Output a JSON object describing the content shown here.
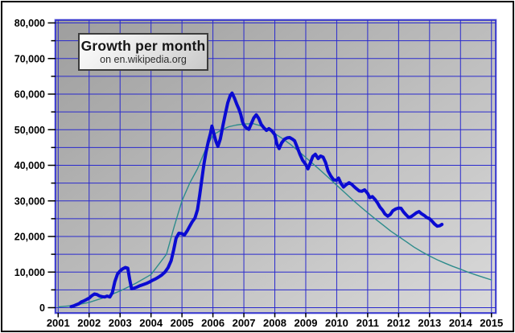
{
  "title_box": {
    "title": "Growth per month",
    "subtitle": "on en.wikipedia.org"
  },
  "colors": {
    "grid": "#2a2ace",
    "plot_border": "#2a2ace",
    "plot_border_halo": "#a0a0e6",
    "plot_bg_from": "#9e9e9e",
    "plot_bg_to": "#dadada",
    "axis": "#000000",
    "actual_line": "#0b0bd2",
    "fit_line": "#2e8c8c",
    "tick_label": "#000000"
  },
  "chart_data": {
    "type": "line",
    "title": "Growth per month",
    "subtitle": "on en.wikipedia.org",
    "xlabel": "",
    "ylabel": "",
    "xlim": [
      2001,
      2015.15
    ],
    "ylim": [
      0,
      80000
    ],
    "grid": true,
    "legend_position": "none",
    "x_ticks": [
      2001,
      2002,
      2003,
      2004,
      2005,
      2006,
      2007,
      2008,
      2009,
      2010,
      2011,
      2012,
      2013,
      2014,
      2015
    ],
    "x_tick_labels": [
      "2001",
      "2002",
      "2003",
      "2004",
      "2005",
      "2006",
      "2007",
      "2008",
      "2009",
      "2010",
      "2011",
      "2012",
      "2013",
      "2014",
      "2015"
    ],
    "y_major_step": 10000,
    "y_minor_step": 5000,
    "y_major_labels": [
      "0",
      "10,000",
      "20,000",
      "30,000",
      "40,000",
      "50,000",
      "60,000",
      "70,000",
      "80,000"
    ],
    "series": [
      {
        "name": "new-articles-per-month-actual",
        "style": "thick",
        "points": [
          [
            2001.42,
            300
          ],
          [
            2001.5,
            500
          ],
          [
            2001.58,
            800
          ],
          [
            2001.67,
            1100
          ],
          [
            2001.75,
            1600
          ],
          [
            2001.83,
            1900
          ],
          [
            2001.92,
            2300
          ],
          [
            2002.0,
            2700
          ],
          [
            2002.08,
            3300
          ],
          [
            2002.17,
            3850
          ],
          [
            2002.25,
            3700
          ],
          [
            2002.33,
            3300
          ],
          [
            2002.42,
            3100
          ],
          [
            2002.5,
            3000
          ],
          [
            2002.58,
            3250
          ],
          [
            2002.67,
            3000
          ],
          [
            2002.75,
            4200
          ],
          [
            2002.83,
            7300
          ],
          [
            2002.92,
            9500
          ],
          [
            2003.0,
            10300
          ],
          [
            2003.08,
            10900
          ],
          [
            2003.17,
            11300
          ],
          [
            2003.25,
            11100
          ],
          [
            2003.31,
            8000
          ],
          [
            2003.37,
            5300
          ],
          [
            2003.46,
            5500
          ],
          [
            2003.55,
            5800
          ],
          [
            2003.65,
            6200
          ],
          [
            2003.75,
            6500
          ],
          [
            2003.85,
            6800
          ],
          [
            2003.95,
            7200
          ],
          [
            2004.05,
            7700
          ],
          [
            2004.15,
            8100
          ],
          [
            2004.25,
            8600
          ],
          [
            2004.35,
            9200
          ],
          [
            2004.45,
            10000
          ],
          [
            2004.55,
            11200
          ],
          [
            2004.65,
            13200
          ],
          [
            2004.73,
            16200
          ],
          [
            2004.81,
            19500
          ],
          [
            2004.9,
            20900
          ],
          [
            2005.0,
            20800
          ],
          [
            2005.08,
            20400
          ],
          [
            2005.17,
            21600
          ],
          [
            2005.25,
            22900
          ],
          [
            2005.33,
            24100
          ],
          [
            2005.42,
            25200
          ],
          [
            2005.5,
            27500
          ],
          [
            2005.57,
            31500
          ],
          [
            2005.64,
            36000
          ],
          [
            2005.71,
            40300
          ],
          [
            2005.78,
            43800
          ],
          [
            2005.85,
            46600
          ],
          [
            2005.92,
            48900
          ],
          [
            2005.97,
            51000
          ],
          [
            2006.04,
            48600
          ],
          [
            2006.1,
            46700
          ],
          [
            2006.16,
            45300
          ],
          [
            2006.24,
            47400
          ],
          [
            2006.32,
            51000
          ],
          [
            2006.4,
            54400
          ],
          [
            2006.48,
            57600
          ],
          [
            2006.56,
            59600
          ],
          [
            2006.62,
            60300
          ],
          [
            2006.7,
            58800
          ],
          [
            2006.77,
            57200
          ],
          [
            2006.84,
            55800
          ],
          [
            2006.9,
            54300
          ],
          [
            2006.95,
            52400
          ],
          [
            2007.0,
            51300
          ],
          [
            2007.08,
            50500
          ],
          [
            2007.16,
            50100
          ],
          [
            2007.24,
            51700
          ],
          [
            2007.32,
            53300
          ],
          [
            2007.4,
            54200
          ],
          [
            2007.48,
            53200
          ],
          [
            2007.56,
            51500
          ],
          [
            2007.64,
            50600
          ],
          [
            2007.73,
            49800
          ],
          [
            2007.81,
            50300
          ],
          [
            2007.9,
            49700
          ],
          [
            2008.0,
            48600
          ],
          [
            2008.07,
            45900
          ],
          [
            2008.14,
            44700
          ],
          [
            2008.22,
            46300
          ],
          [
            2008.31,
            47300
          ],
          [
            2008.4,
            47700
          ],
          [
            2008.48,
            47800
          ],
          [
            2008.56,
            47400
          ],
          [
            2008.64,
            46900
          ],
          [
            2008.73,
            44900
          ],
          [
            2008.81,
            43100
          ],
          [
            2008.9,
            41400
          ],
          [
            2009.0,
            40200
          ],
          [
            2009.07,
            39000
          ],
          [
            2009.15,
            40700
          ],
          [
            2009.23,
            42500
          ],
          [
            2009.31,
            43100
          ],
          [
            2009.4,
            41900
          ],
          [
            2009.48,
            42600
          ],
          [
            2009.56,
            42300
          ],
          [
            2009.64,
            40800
          ],
          [
            2009.72,
            38400
          ],
          [
            2009.81,
            37000
          ],
          [
            2009.9,
            35900
          ],
          [
            2010.0,
            35800
          ],
          [
            2010.06,
            36400
          ],
          [
            2010.14,
            34900
          ],
          [
            2010.22,
            33900
          ],
          [
            2010.31,
            34600
          ],
          [
            2010.4,
            35100
          ],
          [
            2010.48,
            34700
          ],
          [
            2010.56,
            34000
          ],
          [
            2010.64,
            33400
          ],
          [
            2010.73,
            32800
          ],
          [
            2010.81,
            32700
          ],
          [
            2010.9,
            33100
          ],
          [
            2011.0,
            32100
          ],
          [
            2011.07,
            30900
          ],
          [
            2011.15,
            31200
          ],
          [
            2011.24,
            30400
          ],
          [
            2011.32,
            29400
          ],
          [
            2011.4,
            28200
          ],
          [
            2011.48,
            27400
          ],
          [
            2011.56,
            26300
          ],
          [
            2011.65,
            25700
          ],
          [
            2011.73,
            26200
          ],
          [
            2011.81,
            27200
          ],
          [
            2011.9,
            27700
          ],
          [
            2012.0,
            28000
          ],
          [
            2012.08,
            27900
          ],
          [
            2012.16,
            26900
          ],
          [
            2012.24,
            26100
          ],
          [
            2012.33,
            25300
          ],
          [
            2012.41,
            25600
          ],
          [
            2012.49,
            26100
          ],
          [
            2012.58,
            26700
          ],
          [
            2012.66,
            27000
          ],
          [
            2012.74,
            26400
          ],
          [
            2012.83,
            25900
          ],
          [
            2012.91,
            25300
          ],
          [
            2013.0,
            25000
          ],
          [
            2013.08,
            24300
          ],
          [
            2013.16,
            23500
          ],
          [
            2013.25,
            22900
          ],
          [
            2013.33,
            23000
          ],
          [
            2013.4,
            23400
          ]
        ]
      },
      {
        "name": "growth-model-fit",
        "style": "thin",
        "points": [
          [
            2001.0,
            200
          ],
          [
            2001.5,
            600
          ],
          [
            2002.0,
            1500
          ],
          [
            2002.5,
            2900
          ],
          [
            2003.0,
            4700
          ],
          [
            2003.5,
            6800
          ],
          [
            2004.0,
            9300
          ],
          [
            2004.5,
            15000
          ],
          [
            2004.75,
            22800
          ],
          [
            2005.0,
            30000
          ],
          [
            2005.25,
            35000
          ],
          [
            2005.5,
            39000
          ],
          [
            2005.75,
            44200
          ],
          [
            2006.0,
            48500
          ],
          [
            2006.25,
            49800
          ],
          [
            2006.5,
            50800
          ],
          [
            2006.75,
            51300
          ],
          [
            2007.0,
            51600
          ],
          [
            2007.3,
            51700
          ],
          [
            2007.5,
            51200
          ],
          [
            2007.75,
            50200
          ],
          [
            2008.0,
            48900
          ],
          [
            2008.25,
            47500
          ],
          [
            2008.5,
            45900
          ],
          [
            2008.75,
            44100
          ],
          [
            2009.0,
            42200
          ],
          [
            2009.25,
            40300
          ],
          [
            2009.5,
            38400
          ],
          [
            2009.75,
            36400
          ],
          [
            2010.0,
            34400
          ],
          [
            2010.25,
            32400
          ],
          [
            2010.5,
            30400
          ],
          [
            2010.75,
            28500
          ],
          [
            2011.0,
            26700
          ],
          [
            2011.25,
            24900
          ],
          [
            2011.5,
            23200
          ],
          [
            2011.75,
            21500
          ],
          [
            2012.0,
            20000
          ],
          [
            2012.25,
            18500
          ],
          [
            2012.5,
            17000
          ],
          [
            2012.75,
            15700
          ],
          [
            2013.0,
            14500
          ],
          [
            2013.25,
            13450
          ],
          [
            2013.5,
            12500
          ],
          [
            2013.75,
            11600
          ],
          [
            2014.0,
            10800
          ],
          [
            2014.25,
            9950
          ],
          [
            2014.5,
            9200
          ],
          [
            2014.75,
            8500
          ],
          [
            2015.0,
            7800
          ]
        ]
      }
    ]
  }
}
